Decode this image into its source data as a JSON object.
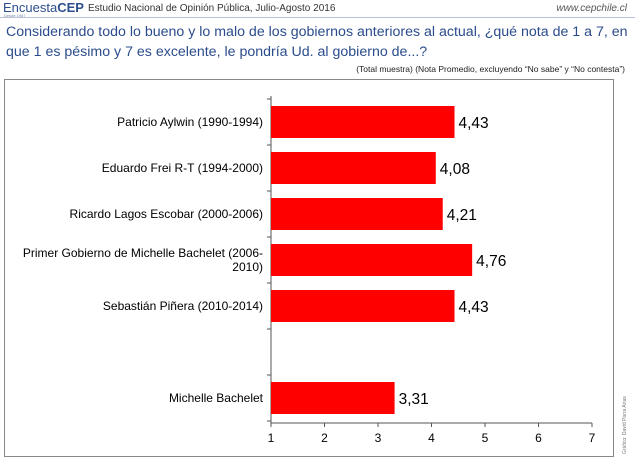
{
  "header": {
    "brand_light": "Encuesta",
    "brand_bold": "CEP",
    "brand_tag": "Desde 1987",
    "study": "Estudio Nacional de Opinión Pública, Julio-Agosto 2016",
    "url": "www.cepchile.cl"
  },
  "question": "Considerando todo lo bueno y lo malo de los gobiernos anteriores al actual, ¿qué nota de 1 a 7, en que 1 es pésimo y 7 es excelente, le pondría Ud. al gobierno de...?",
  "note": "(Total muestra) (Nota Promedio, excluyendo “No sabe” y “No contesta”)",
  "credit": "Gráfico: David Parra Arias",
  "chart_data": {
    "type": "bar",
    "orientation": "horizontal",
    "categories": [
      "Patricio Aylwin (1990-1994)",
      "Eduardo Frei R-T (1994-2000)",
      "Ricardo Lagos Escobar (2000-2006)",
      "Primer Gobierno de Michelle Bachelet (2006-2010)",
      "Sebastián Piñera (2010-2014)",
      "",
      "Michelle Bachelet"
    ],
    "category_lines": [
      [
        "Patricio Aylwin (1990-1994)"
      ],
      [
        "Eduardo Frei R-T (1994-2000)"
      ],
      [
        "Ricardo Lagos Escobar (2000-2006)"
      ],
      [
        "Primer Gobierno de Michelle Bachelet (2006-",
        "2010)"
      ],
      [
        "Sebastián Piñera (2010-2014)"
      ],
      [],
      [
        "Michelle Bachelet"
      ]
    ],
    "values": [
      4.43,
      4.08,
      4.21,
      4.76,
      4.43,
      null,
      3.31
    ],
    "value_labels": [
      "4,43",
      "4,08",
      "4,21",
      "4,76",
      "4,43",
      "",
      "3,31"
    ],
    "xlim": [
      1,
      7
    ],
    "xticks": [
      1,
      2,
      3,
      4,
      5,
      6,
      7
    ],
    "grid": false,
    "bar_color": "#ff0000"
  }
}
